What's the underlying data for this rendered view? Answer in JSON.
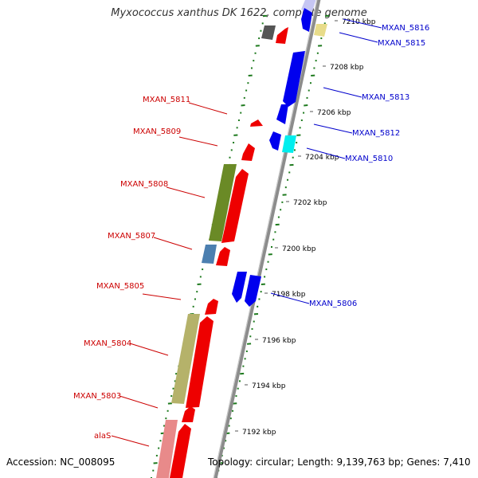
{
  "title": "Myxococcus xanthus DK 1622, complete genome",
  "accession": "Accession: NC_008095",
  "topology": "Topology: circular; Length: 9,139,763 bp; Genes: 7,410",
  "colors": {
    "forward_label": "#cc0000",
    "reverse_label": "#0000cc",
    "backbone": "#8c8c8c",
    "dots": "#1e7a1e"
  },
  "ticks": [
    "7192 kbp",
    "7194 kbp",
    "7196 kbp",
    "7198 kbp",
    "7200 kbp",
    "7202 kbp",
    "7204 kbp",
    "7206 kbp",
    "7208 kbp",
    "7210 kbp"
  ],
  "forward_genes": [
    "alaS",
    "MXAN_5803",
    "MXAN_5804",
    "MXAN_5805",
    "MXAN_5807",
    "MXAN_5808",
    "MXAN_5809",
    "MXAN_5811"
  ],
  "reverse_genes": [
    "MXAN_5806",
    "MXAN_5810",
    "MXAN_5812",
    "MXAN_5813",
    "MXAN_5815",
    "MXAN_5816"
  ]
}
